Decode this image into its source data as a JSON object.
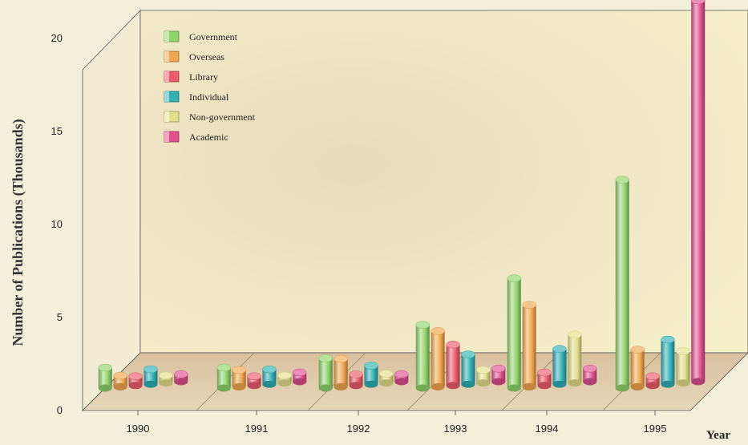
{
  "chart_data": {
    "type": "bar",
    "title": "",
    "xlabel": "Year",
    "ylabel": "Number of Publications (Thousands)",
    "ylim": [
      0,
      22
    ],
    "yticks": [
      0,
      5,
      10,
      15,
      20
    ],
    "categories": [
      "1990",
      "1991",
      "1992",
      "1993",
      "1994",
      "1995"
    ],
    "legend_position": "top-left",
    "grid": false,
    "series": [
      {
        "name": "Government",
        "color": "#8fd46a",
        "values": [
          1.1,
          1.1,
          1.6,
          3.4,
          5.9,
          11.2
        ]
      },
      {
        "name": "Overseas",
        "color": "#f2a64c",
        "values": [
          0.6,
          0.9,
          1.5,
          3.0,
          4.4,
          2.0
        ]
      },
      {
        "name": "Library",
        "color": "#ec5b6c",
        "values": [
          0.5,
          0.5,
          0.6,
          2.2,
          0.7,
          0.5
        ]
      },
      {
        "name": "Individual",
        "color": "#2eb0b5",
        "values": [
          0.8,
          0.8,
          1.0,
          1.6,
          1.9,
          2.4
        ]
      },
      {
        "name": "Non-government",
        "color": "#e3de8a",
        "values": [
          0.4,
          0.4,
          0.5,
          0.7,
          2.6,
          1.7
        ]
      },
      {
        "name": "Academic",
        "color": "#e0508f",
        "values": [
          0.4,
          0.5,
          0.4,
          0.7,
          0.7,
          20.5
        ]
      }
    ]
  }
}
